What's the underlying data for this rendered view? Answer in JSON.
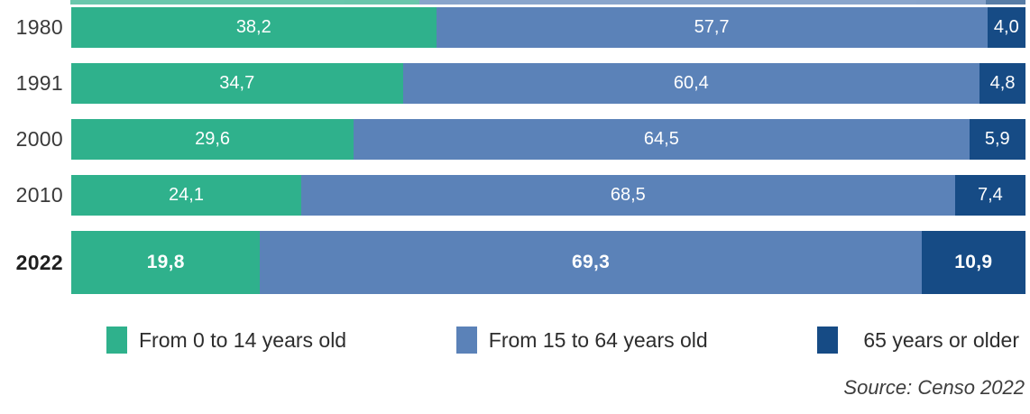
{
  "chart_data": {
    "type": "bar",
    "orientation": "horizontal",
    "stacked": true,
    "unit": "percent",
    "title": "",
    "legend_position": "bottom",
    "categories": [
      "1980",
      "1991",
      "2000",
      "2010",
      "2022"
    ],
    "emphasized_category": "2022",
    "series": [
      {
        "name": "From 0 to 14 years old",
        "color": "#2fb18c",
        "values": [
          38.2,
          34.7,
          29.6,
          24.1,
          19.8
        ]
      },
      {
        "name": "From 15 to 64 years old",
        "color": "#5b82b8",
        "values": [
          57.7,
          60.4,
          64.5,
          68.5,
          69.3
        ]
      },
      {
        "name": "65 years or older",
        "color": "#164b85",
        "values": [
          4.0,
          4.8,
          5.9,
          7.4,
          10.9
        ]
      }
    ],
    "value_labels": [
      [
        "38,2",
        "57,7",
        "4,0"
      ],
      [
        "34,7",
        "60,4",
        "4,8"
      ],
      [
        "29,6",
        "64,5",
        "5,9"
      ],
      [
        "24,1",
        "68,5",
        "7,4"
      ],
      [
        "19,8",
        "69,3",
        "10,9"
      ]
    ],
    "cropped_top_bar_segments": [
      36.5,
      59.3,
      4.2
    ],
    "source": "Source: Censo 2022"
  },
  "colors": {
    "green": "#2fb18c",
    "medium_blue": "#5b82b8",
    "dark_navy": "#164b85",
    "axis_label_text": "#3a3a3a",
    "value_text": "#ffffff",
    "background": "#ffffff"
  }
}
